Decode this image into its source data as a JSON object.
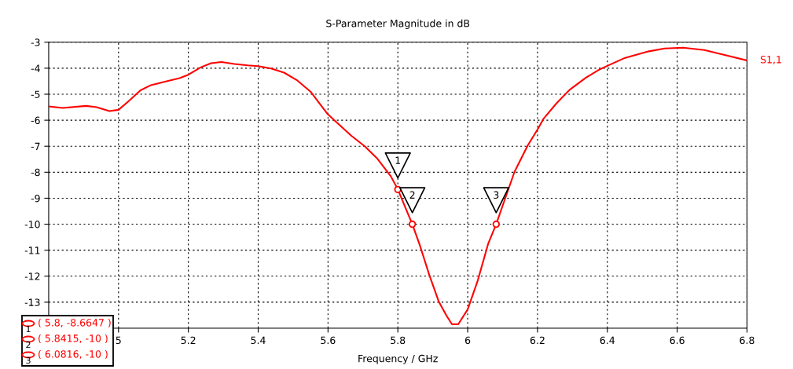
{
  "chart_data": {
    "type": "line",
    "title": "S-Parameter Magnitude in dB",
    "xlabel": "Frequency / GHz",
    "xlim": [
      4.8,
      6.8
    ],
    "xticks": [
      5,
      5.2,
      5.4,
      5.6,
      5.8,
      6,
      6.2,
      6.4,
      6.6,
      6.8
    ],
    "ylim": [
      -14,
      -3
    ],
    "yticks": [
      -13,
      -12,
      -11,
      -10,
      -9,
      -8,
      -7,
      -6,
      -5,
      -4,
      -3
    ],
    "grid": true,
    "legend": false,
    "series": [
      {
        "name": "S1,1",
        "color": "#ff0000",
        "line_style": "solid",
        "marker": "none",
        "x": [
          4.8,
          4.84,
          4.907,
          4.937,
          4.974,
          5.0,
          5.026,
          5.063,
          5.093,
          5.138,
          5.175,
          5.2,
          5.235,
          5.265,
          5.295,
          5.332,
          5.37,
          5.4,
          5.437,
          5.474,
          5.51,
          5.55,
          5.578,
          5.6,
          5.63,
          5.667,
          5.705,
          5.74,
          5.78,
          5.8,
          5.8415,
          5.864,
          5.89,
          5.917,
          5.94,
          5.955,
          5.973,
          6.0,
          6.029,
          6.059,
          6.0816,
          6.105,
          6.134,
          6.172,
          6.2,
          6.217,
          6.255,
          6.292,
          6.338,
          6.376,
          6.4,
          6.451,
          6.519,
          6.564,
          6.617,
          6.678,
          6.738,
          6.8
        ],
        "values": [
          -5.47,
          -5.53,
          -5.45,
          -5.5,
          -5.65,
          -5.6,
          -5.3,
          -4.85,
          -4.65,
          -4.5,
          -4.38,
          -4.25,
          -3.97,
          -3.81,
          -3.76,
          -3.84,
          -3.89,
          -3.92,
          -4.01,
          -4.17,
          -4.45,
          -4.9,
          -5.4,
          -5.78,
          -6.15,
          -6.6,
          -7.0,
          -7.46,
          -8.16,
          -8.6647,
          -10,
          -10.85,
          -11.95,
          -12.97,
          -13.53,
          -13.85,
          -13.85,
          -13.28,
          -12.16,
          -10.74,
          -10,
          -9.1,
          -7.99,
          -6.97,
          -6.36,
          -5.95,
          -5.34,
          -4.83,
          -4.37,
          -4.06,
          -3.91,
          -3.6,
          -3.35,
          -3.24,
          -3.21,
          -3.3,
          -3.5,
          -3.7
        ]
      },
      {
        "type": "scatter",
        "color": "#ff0000",
        "marker": "circle",
        "x": [
          5.8,
          5.8415,
          6.0816
        ],
        "values": [
          -8.6647,
          -10,
          -10
        ]
      }
    ],
    "annotations": [
      {
        "text": "1",
        "x": 5.8,
        "y": -8.6647
      },
      {
        "text": "2",
        "x": 5.8415,
        "y": -10
      },
      {
        "text": "3",
        "x": 6.0816,
        "y": -10
      },
      "( 5.8, -8.6647 )",
      "( 5.8415, -10 )",
      "( 6.0816, -10 )"
    ]
  }
}
